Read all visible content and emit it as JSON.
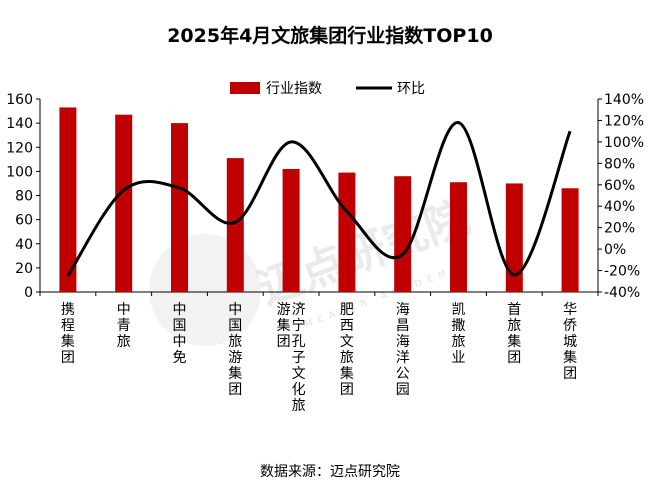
{
  "chart_data": {
    "type": "bar",
    "title": "2025年4月文旅集团行业指数TOP10",
    "categories": [
      "携程集团",
      "中青旅",
      "中国中免",
      "中国旅游集团",
      "济宁孔子文化旅游集团",
      "肥西文旅集团",
      "海昌海洋公园",
      "凯撒旅业",
      "首旅集团",
      "华侨城集团"
    ],
    "series": [
      {
        "name": "行业指数",
        "type": "bar",
        "axis": "left",
        "color": "#c00000",
        "values": [
          153,
          147,
          140,
          111,
          102,
          99,
          96,
          91,
          90,
          86
        ]
      },
      {
        "name": "环比",
        "type": "line",
        "axis": "right",
        "color": "#000000",
        "values": [
          -25,
          55,
          57,
          25,
          100,
          35,
          -5,
          118,
          -24,
          110
        ]
      }
    ],
    "ylim_left": [
      0,
      160
    ],
    "yticks_left": [
      "0",
      "20",
      "40",
      "60",
      "80",
      "100",
      "120",
      "140",
      "160"
    ],
    "ylim_right": [
      -40,
      140
    ],
    "yticks_right": [
      "-40%",
      "-20%",
      "0%",
      "20%",
      "40%",
      "60%",
      "80%",
      "100%",
      "120%",
      "140%"
    ],
    "legend_position": "top-center",
    "grid": false
  },
  "source_text": "数据来源：迈点研究院",
  "watermark": {
    "text": "迈点研究院",
    "sub": "MEADIN ACADEMY"
  }
}
